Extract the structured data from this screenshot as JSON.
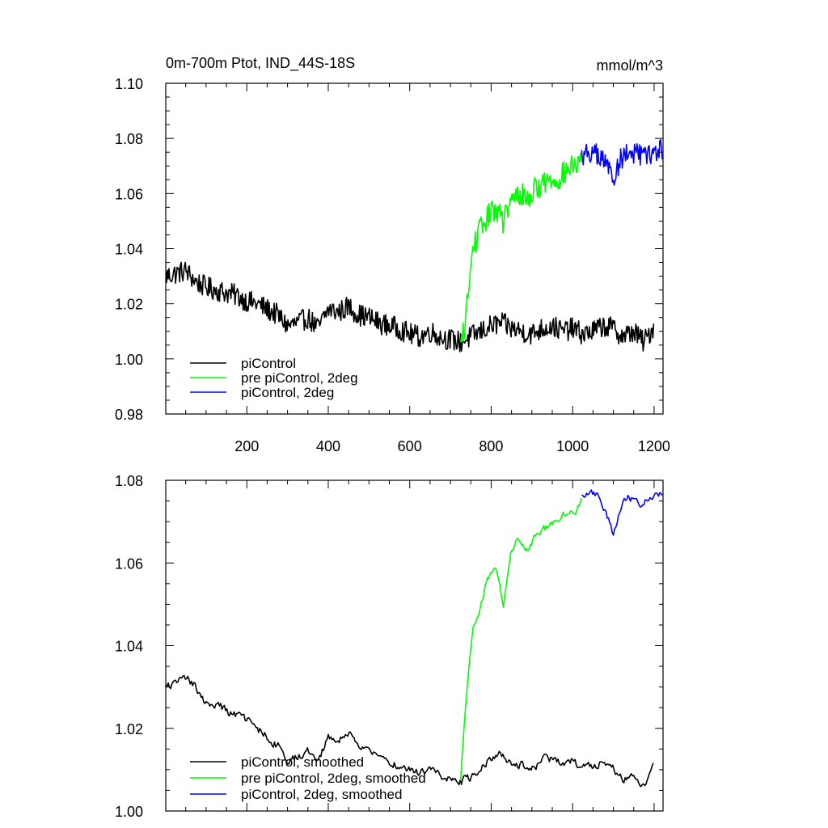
{
  "title_left": "0m-700m Ptot, IND_44S-18S",
  "title_right": "mmol/m^3",
  "colors": {
    "piControl": "#000000",
    "pre": "#00ff00",
    "twodeg": "#0000ff"
  },
  "chart_data": [
    {
      "type": "line",
      "xlim": [
        1,
        1222
      ],
      "ylim": [
        0.98,
        1.1
      ],
      "xticks": [
        200,
        400,
        600,
        800,
        1000,
        1200
      ],
      "xtick_labels": [
        "200",
        "400",
        "600",
        "800",
        "1000",
        "1200"
      ],
      "yticks": [
        0.98,
        1.0,
        1.02,
        1.04,
        1.06,
        1.08,
        1.1
      ],
      "ytick_labels": [
        "0.98",
        "1.00",
        "1.02",
        "1.04",
        "1.06",
        "1.08",
        "1.10"
      ],
      "legend_position": "bottom-left",
      "series": [
        {
          "name": "piControl",
          "color": "#000000",
          "x": [
            1,
            25,
            50,
            75,
            100,
            125,
            150,
            175,
            200,
            225,
            250,
            275,
            300,
            325,
            350,
            375,
            400,
            425,
            450,
            475,
            500,
            525,
            550,
            575,
            600,
            625,
            650,
            675,
            700,
            725,
            750,
            775,
            800,
            825,
            850,
            875,
            900,
            925,
            950,
            975,
            1000,
            1025,
            1050,
            1075,
            1100,
            1125,
            1150,
            1175,
            1200
          ],
          "y": [
            1.03,
            1.031,
            1.032,
            1.028,
            1.026,
            1.025,
            1.024,
            1.023,
            1.021,
            1.02,
            1.018,
            1.016,
            1.012,
            1.013,
            1.015,
            1.011,
            1.018,
            1.017,
            1.019,
            1.016,
            1.015,
            1.013,
            1.012,
            1.011,
            1.009,
            1.008,
            1.01,
            1.008,
            1.007,
            1.006,
            1.008,
            1.01,
            1.012,
            1.013,
            1.011,
            1.01,
            1.009,
            1.011,
            1.012,
            1.01,
            1.011,
            1.009,
            1.01,
            1.012,
            1.011,
            1.008,
            1.01,
            1.006,
            1.012
          ],
          "noise": 0.004
        },
        {
          "name": "pre piControl, 2deg",
          "color": "#00ff00",
          "x": [
            725,
            735,
            745,
            755,
            770,
            790,
            810,
            830,
            850,
            870,
            890,
            910,
            930,
            950,
            970,
            990,
            1010,
            1022
          ],
          "y": [
            1.004,
            1.012,
            1.025,
            1.04,
            1.046,
            1.051,
            1.055,
            1.05,
            1.057,
            1.06,
            1.058,
            1.062,
            1.064,
            1.065,
            1.066,
            1.069,
            1.07,
            1.072
          ],
          "noise": 0.0045
        },
        {
          "name": "piControl, 2deg",
          "color": "#0000ff",
          "x": [
            1022,
            1040,
            1060,
            1080,
            1100,
            1120,
            1140,
            1160,
            1180,
            1200,
            1222
          ],
          "y": [
            1.074,
            1.075,
            1.074,
            1.071,
            1.066,
            1.073,
            1.075,
            1.074,
            1.073,
            1.075,
            1.076
          ],
          "noise": 0.004
        }
      ]
    },
    {
      "type": "line",
      "xlim": [
        1,
        1222
      ],
      "ylim": [
        1.0,
        1.08
      ],
      "xticks": [
        200,
        400,
        600,
        800,
        1000,
        1200
      ],
      "yticks": [
        1.0,
        1.02,
        1.04,
        1.06,
        1.08
      ],
      "ytick_labels": [
        "1.00",
        "1.02",
        "1.04",
        "1.06",
        "1.08"
      ],
      "legend_position": "bottom-left",
      "series": [
        {
          "name": "piControl, smoothed",
          "color": "#000000",
          "x": [
            1,
            25,
            50,
            75,
            100,
            125,
            150,
            175,
            200,
            225,
            250,
            275,
            300,
            325,
            350,
            375,
            400,
            425,
            450,
            475,
            500,
            525,
            550,
            575,
            600,
            625,
            650,
            675,
            700,
            725,
            750,
            775,
            800,
            825,
            850,
            875,
            900,
            925,
            950,
            975,
            1000,
            1025,
            1050,
            1075,
            1100,
            1125,
            1150,
            1175,
            1200
          ],
          "y": [
            1.03,
            1.031,
            1.032,
            1.03,
            1.026,
            1.026,
            1.024,
            1.023,
            1.022,
            1.02,
            1.018,
            1.016,
            1.012,
            1.013,
            1.015,
            1.012,
            1.018,
            1.017,
            1.019,
            1.016,
            1.015,
            1.013,
            1.012,
            1.011,
            1.01,
            1.009,
            1.01,
            1.009,
            1.008,
            1.007,
            1.008,
            1.011,
            1.013,
            1.014,
            1.012,
            1.011,
            1.01,
            1.012,
            1.013,
            1.011,
            1.012,
            1.01,
            1.011,
            1.012,
            1.01,
            1.008,
            1.009,
            1.006,
            1.012
          ],
          "noise": 0.002
        },
        {
          "name": "pre piControl, 2deg, smoothed",
          "color": "#00ff00",
          "x": [
            725,
            735,
            745,
            755,
            770,
            790,
            810,
            830,
            850,
            870,
            890,
            910,
            930,
            950,
            970,
            990,
            1010,
            1022
          ],
          "y": [
            1.007,
            1.022,
            1.035,
            1.045,
            1.047,
            1.056,
            1.059,
            1.05,
            1.063,
            1.066,
            1.063,
            1.067,
            1.068,
            1.069,
            1.071,
            1.072,
            1.073,
            1.075
          ],
          "noise": 0.0018
        },
        {
          "name": "piControl, 2deg, smoothed",
          "color": "#0000ff",
          "x": [
            1022,
            1040,
            1060,
            1080,
            1100,
            1120,
            1140,
            1160,
            1180,
            1200,
            1222
          ],
          "y": [
            1.076,
            1.077,
            1.076,
            1.073,
            1.067,
            1.074,
            1.076,
            1.074,
            1.075,
            1.076,
            1.077
          ],
          "noise": 0.0018
        }
      ]
    }
  ]
}
